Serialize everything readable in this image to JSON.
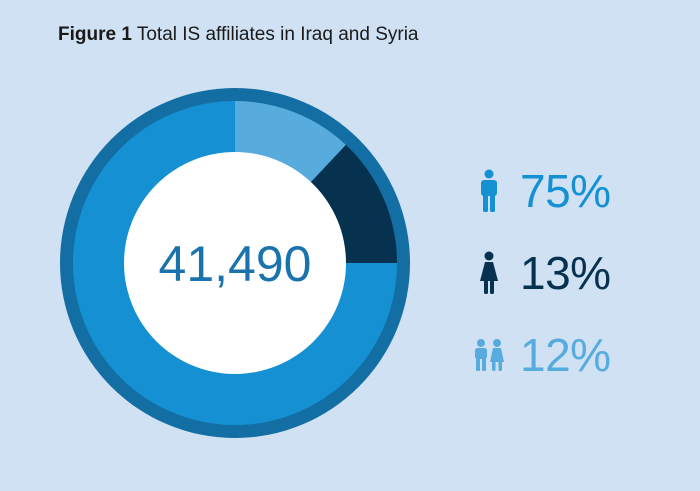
{
  "figure": {
    "number": "Figure 1",
    "caption": "Total IS affiliates in Iraq and Syria"
  },
  "colors": {
    "background": "#cfe1f3",
    "men": "#1591d3",
    "women": "#06324f",
    "children": "#58acdd",
    "outer_ring": "#136ea3"
  },
  "chart_data": {
    "type": "pie",
    "style": "donut",
    "center_label": "41,490",
    "total": 41490,
    "categories": [
      "men",
      "women",
      "children"
    ],
    "values": [
      75,
      13,
      12
    ],
    "value_labels": [
      "75%",
      "13%",
      "12%"
    ],
    "legend_placement": "right",
    "legend_icons": [
      "man-icon",
      "woman-icon",
      "children-icon"
    ]
  }
}
